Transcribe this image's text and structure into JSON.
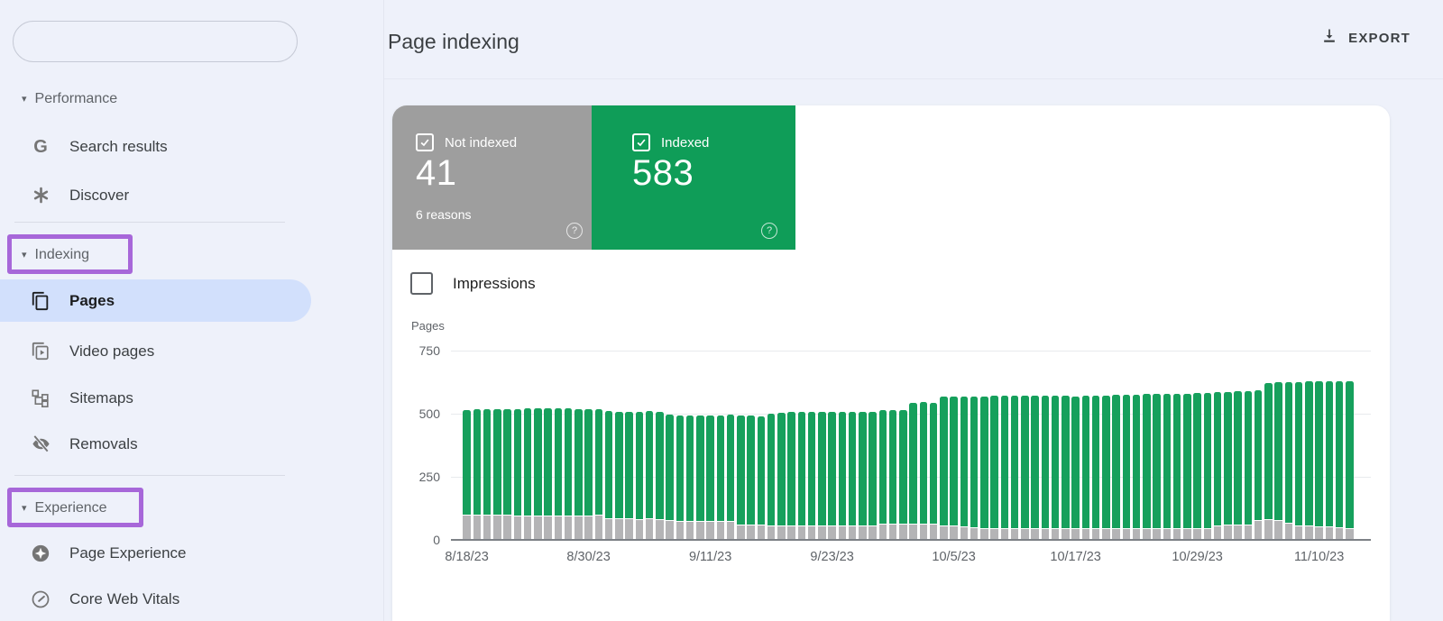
{
  "sidebar": {
    "search": {
      "value": "",
      "placeholder": ""
    },
    "sections": [
      {
        "label": "Performance",
        "items": [
          {
            "label": "Search results",
            "icon": "google-g"
          },
          {
            "label": "Discover",
            "icon": "asterisk"
          }
        ]
      },
      {
        "label": "Indexing",
        "highlighted": true,
        "items": [
          {
            "label": "Pages",
            "icon": "pages",
            "selected": true
          },
          {
            "label": "Video pages",
            "icon": "video-pages"
          },
          {
            "label": "Sitemaps",
            "icon": "sitemap"
          },
          {
            "label": "Removals",
            "icon": "eye-off"
          }
        ]
      },
      {
        "label": "Experience",
        "highlighted": true,
        "items": [
          {
            "label": "Page Experience",
            "icon": "star-circle"
          },
          {
            "label": "Core Web Vitals",
            "icon": "gauge"
          }
        ]
      }
    ]
  },
  "header": {
    "title": "Page indexing",
    "export_label": "EXPORT"
  },
  "summary_cards": [
    {
      "label": "Not indexed",
      "value": "41",
      "sub": "6 reasons",
      "color": "#9e9e9e",
      "checked": true
    },
    {
      "label": "Indexed",
      "value": "583",
      "sub": "",
      "color": "#0f9d58",
      "checked": true
    }
  ],
  "impressions_toggle": {
    "label": "Impressions",
    "checked": false
  },
  "annotation_color": "#a767d9",
  "chart_data": {
    "type": "bar",
    "stacked": true,
    "title": "",
    "xlabel": "",
    "ylabel": "Pages",
    "ylim": [
      0,
      750
    ],
    "grid": true,
    "legend": "none",
    "ytick_labels": [
      "750",
      "500",
      "250",
      "0"
    ],
    "xticks": [
      "8/18/23",
      "8/30/23",
      "9/11/23",
      "9/23/23",
      "10/5/23",
      "10/17/23",
      "10/29/23",
      "11/10/23"
    ],
    "xtick_every": 12,
    "x": [
      "8/18/23",
      "8/19/23",
      "8/20/23",
      "8/21/23",
      "8/22/23",
      "8/23/23",
      "8/24/23",
      "8/25/23",
      "8/26/23",
      "8/27/23",
      "8/28/23",
      "8/29/23",
      "8/30/23",
      "8/31/23",
      "9/1/23",
      "9/2/23",
      "9/3/23",
      "9/4/23",
      "9/5/23",
      "9/6/23",
      "9/7/23",
      "9/8/23",
      "9/9/23",
      "9/10/23",
      "9/11/23",
      "9/12/23",
      "9/13/23",
      "9/14/23",
      "9/15/23",
      "9/16/23",
      "9/17/23",
      "9/18/23",
      "9/19/23",
      "9/20/23",
      "9/21/23",
      "9/22/23",
      "9/23/23",
      "9/24/23",
      "9/25/23",
      "9/26/23",
      "9/27/23",
      "9/28/23",
      "9/29/23",
      "9/30/23",
      "10/1/23",
      "10/2/23",
      "10/3/23",
      "10/4/23",
      "10/5/23",
      "10/6/23",
      "10/7/23",
      "10/8/23",
      "10/9/23",
      "10/10/23",
      "10/11/23",
      "10/12/23",
      "10/13/23",
      "10/14/23",
      "10/15/23",
      "10/16/23",
      "10/17/23",
      "10/18/23",
      "10/19/23",
      "10/20/23",
      "10/21/23",
      "10/22/23",
      "10/23/23",
      "10/24/23",
      "10/25/23",
      "10/26/23",
      "10/27/23",
      "10/28/23",
      "10/29/23",
      "10/30/23",
      "10/31/23",
      "11/1/23",
      "11/2/23",
      "11/3/23",
      "11/4/23",
      "11/5/23",
      "11/6/23",
      "11/7/23",
      "11/8/23",
      "11/9/23",
      "11/10/23",
      "11/11/23",
      "11/12/23",
      "11/13/23"
    ],
    "series": [
      {
        "name": "Not indexed",
        "color": "#b4b4b6",
        "values": [
          95,
          93,
          93,
          92,
          92,
          91,
          90,
          90,
          90,
          91,
          90,
          90,
          90,
          92,
          80,
          78,
          78,
          77,
          78,
          77,
          72,
          70,
          70,
          70,
          70,
          68,
          67,
          55,
          54,
          54,
          52,
          52,
          52,
          52,
          51,
          51,
          51,
          50,
          50,
          50,
          50,
          57,
          57,
          57,
          58,
          57,
          56,
          50,
          49,
          48,
          42,
          41,
          41,
          40,
          40,
          40,
          40,
          39,
          39,
          39,
          39,
          38,
          38,
          38,
          38,
          38,
          38,
          38,
          38,
          38,
          38,
          38,
          38,
          39,
          52,
          53,
          54,
          55,
          72,
          74,
          73,
          60,
          50,
          49,
          48,
          45,
          43,
          41
        ]
      },
      {
        "name": "Indexed",
        "color": "#16a05c",
        "values": [
          415,
          419,
          419,
          421,
          420,
          422,
          426,
          427,
          428,
          427,
          427,
          424,
          423,
          420,
          425,
          425,
          426,
          426,
          427,
          427,
          418,
          418,
          417,
          418,
          419,
          420,
          423,
          433,
          433,
          432,
          445,
          448,
          449,
          450,
          451,
          452,
          453,
          454,
          454,
          453,
          454,
          451,
          453,
          454,
          482,
          486,
          484,
          512,
          516,
          515,
          521,
          524,
          525,
          526,
          527,
          526,
          526,
          528,
          527,
          528,
          526,
          528,
          529,
          530,
          531,
          532,
          534,
          535,
          535,
          536,
          537,
          538,
          539,
          539,
          528,
          529,
          530,
          531,
          518,
          544,
          547,
          561,
          572,
          574,
          576,
          580,
          583,
          583
        ]
      }
    ]
  }
}
